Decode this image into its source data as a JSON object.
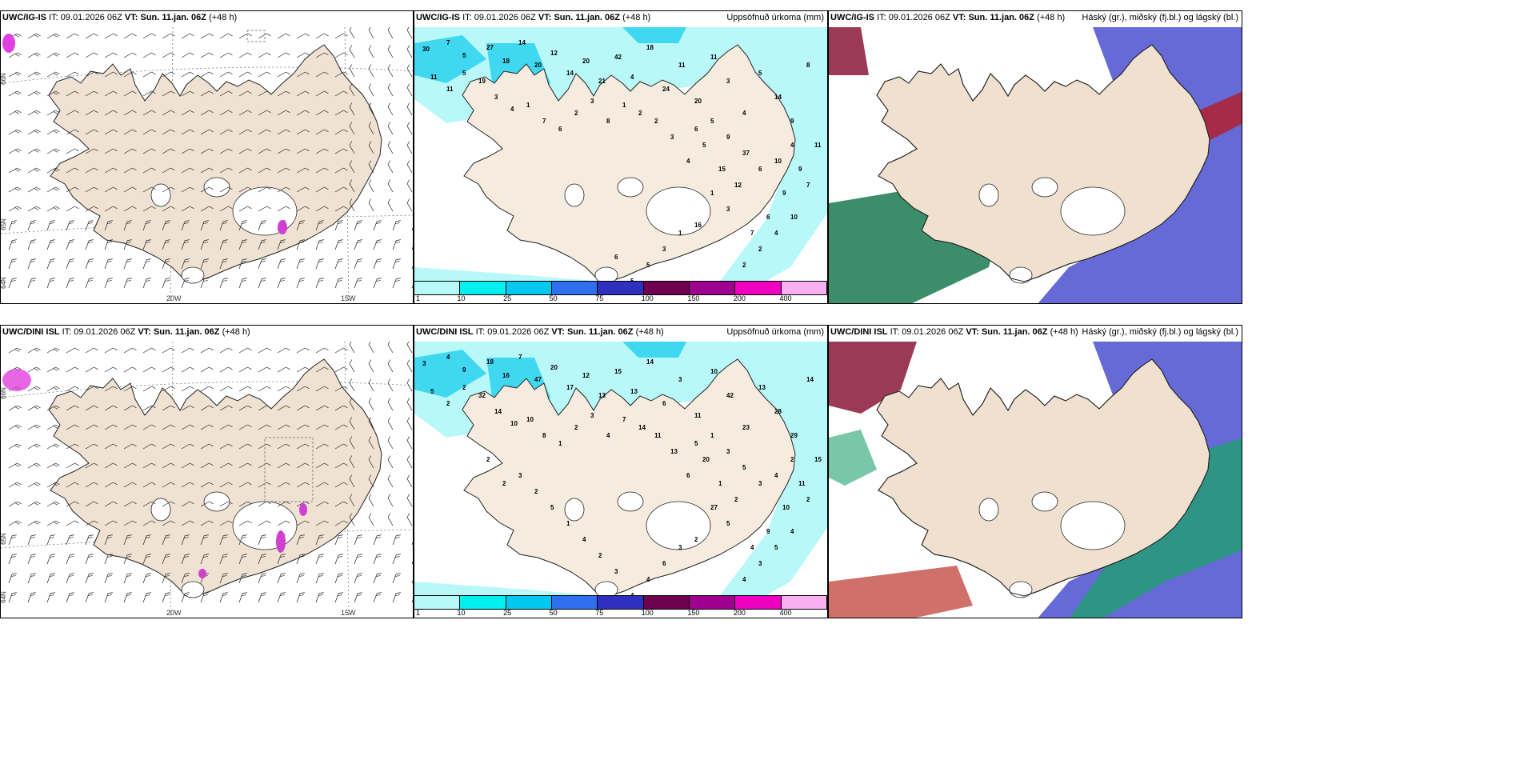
{
  "panels": [
    {
      "id": "tl",
      "model": "UWC/IG-IS",
      "it_label": "IT:",
      "it": "09.01.2026 06Z",
      "vt_label": "VT:",
      "vt": "Sun. 11.jan. 06Z",
      "lead": "(+48 h)",
      "right": ""
    },
    {
      "id": "tm",
      "model": "UWC/IG-IS",
      "it_label": "IT:",
      "it": "09.01.2026 06Z",
      "vt_label": "VT:",
      "vt": "Sun. 11.jan. 06Z",
      "lead": "(+48 h)",
      "right": "Uppsöfnuð úrkoma (mm)"
    },
    {
      "id": "tr",
      "model": "UWC/IG-IS",
      "it_label": "IT:",
      "it": "09.01.2026 06Z",
      "vt_label": "VT:",
      "vt": "Sun. 11.jan. 06Z",
      "lead": "(+48 h)",
      "right": "Háský (gr.), miðský (fj.bl.) og lágský (bl.)"
    },
    {
      "id": "bl",
      "model": "UWC/DINI ISL",
      "it_label": "IT:",
      "it": "09.01.2026 06Z",
      "vt_label": "VT:",
      "vt": "Sun. 11.jan. 06Z",
      "lead": "(+48 h)",
      "right": ""
    },
    {
      "id": "bm",
      "model": "UWC/DINI ISL",
      "it_label": "IT:",
      "it": "09.01.2026 06Z",
      "vt_label": "VT:",
      "vt": "Sun. 11.jan. 06Z",
      "lead": "(+48 h)",
      "right": "Uppsöfnuð úrkoma (mm)"
    },
    {
      "id": "br",
      "model": "UWC/DINI ISL",
      "it_label": "IT:",
      "it": "09.01.2026 06Z",
      "vt_label": "VT:",
      "vt": "Sun. 11.jan. 06Z",
      "lead": "(+48 h)",
      "right": "Háský (gr.), miðský (fj.bl.) og lágský (bl.)"
    }
  ],
  "colorbar": {
    "labels": [
      "1",
      "10",
      "25",
      "50",
      "75",
      "100",
      "150",
      "200",
      "400"
    ],
    "colors": [
      "#b8f8f8",
      "#00f0f0",
      "#00c8f0",
      "#3070f0",
      "#3030c0",
      "#700050",
      "#a00090",
      "#f000c0",
      "#f8b0f0"
    ]
  },
  "axis_labels": {
    "lon_20w": "20W",
    "lon_15w": "15W",
    "lat_65n": "65N",
    "lat_64n": "64N",
    "lat_66n": "66N"
  },
  "precip_top": [
    "30",
    "7",
    "5",
    "27",
    "18",
    "14",
    "20",
    "12",
    "14",
    "20",
    "21",
    "42",
    "4",
    "18",
    "24",
    "11",
    "20",
    "11",
    "3",
    "4",
    "5",
    "14",
    "9",
    "8",
    "11",
    "9",
    "9",
    "6",
    "7",
    "12",
    "15",
    "5",
    "4",
    "3",
    "2",
    "2",
    "1",
    "8",
    "3",
    "2",
    "6",
    "7",
    "1",
    "4",
    "3",
    "19",
    "5",
    "11",
    "11",
    "6",
    "5",
    "9",
    "37",
    "6",
    "10",
    "4",
    "7",
    "10",
    "4",
    "2",
    "2",
    "3",
    "1",
    "16",
    "1",
    "3",
    "5",
    "5",
    "6"
  ],
  "precip_bottom": [
    "3",
    "4",
    "9",
    "18",
    "16",
    "7",
    "47",
    "20",
    "17",
    "12",
    "13",
    "15",
    "13",
    "14",
    "6",
    "3",
    "11",
    "10",
    "42",
    "23",
    "13",
    "28",
    "29",
    "14",
    "15",
    "11",
    "10",
    "9",
    "4",
    "2",
    "1",
    "20",
    "6",
    "13",
    "11",
    "14",
    "7",
    "4",
    "3",
    "2",
    "1",
    "8",
    "10",
    "10",
    "14",
    "32",
    "2",
    "2",
    "5",
    "5",
    "1",
    "3",
    "5",
    "3",
    "4",
    "2",
    "2",
    "4",
    "5",
    "3",
    "4",
    "5",
    "27",
    "2",
    "3",
    "6",
    "4",
    "4",
    "3",
    "2",
    "4",
    "1",
    "5",
    "2",
    "3",
    "2",
    "2"
  ],
  "legend_note": ""
}
